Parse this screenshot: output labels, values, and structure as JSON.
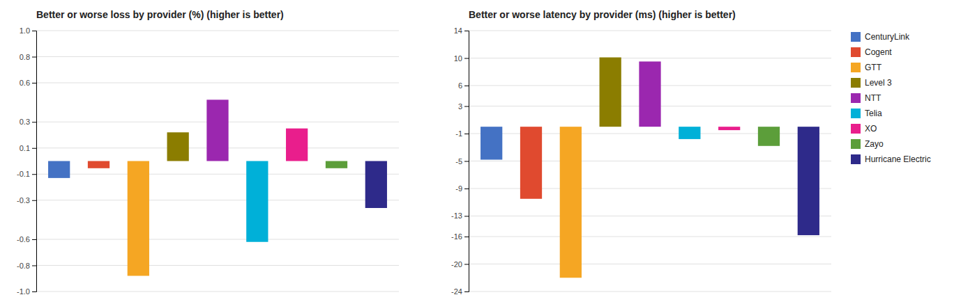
{
  "chart_data": [
    {
      "type": "bar",
      "title": "Better or worse loss by provider (%) (higher is better)",
      "categories": [
        "CenturyLink",
        "Cogent",
        "GTT",
        "Level 3",
        "NTT",
        "Telia",
        "XO",
        "Zayo",
        "Hurricane Electric"
      ],
      "values": [
        -0.13,
        -0.055,
        -0.88,
        0.22,
        0.47,
        -0.62,
        0.25,
        -0.055,
        -0.36
      ],
      "colors": [
        "#4472c4",
        "#e04a2f",
        "#f5a623",
        "#8b7d00",
        "#9b27af",
        "#00b0d8",
        "#e91e8c",
        "#5c9e3a",
        "#2e2a8a"
      ],
      "ylim": [
        -1.0,
        1.0
      ],
      "yticks": [
        {
          "value": -1.0,
          "label": "-1.0"
        },
        -0.8,
        -0.6,
        -0.3,
        -0.1,
        0.1,
        0.3,
        0.6,
        0.8,
        {
          "value": 1.0,
          "label": "1.0"
        }
      ],
      "grid": true,
      "tick_labels": "y"
    },
    {
      "type": "bar",
      "title": "Better or worse latency by provider (ms) (higher is better)",
      "categories": [
        "CenturyLink",
        "Cogent",
        "GTT",
        "Level 3",
        "NTT",
        "Telia",
        "XO",
        "Zayo",
        "Hurricane Electric"
      ],
      "values": [
        -4.8,
        -10.5,
        -22.0,
        10.1,
        9.5,
        -1.8,
        -0.5,
        -2.8,
        -15.8
      ],
      "colors": [
        "#4472c4",
        "#e04a2f",
        "#f5a623",
        "#8b7d00",
        "#9b27af",
        "#00b0d8",
        "#e91e8c",
        "#5c9e3a",
        "#2e2a8a"
      ],
      "ylim": [
        -24,
        14
      ],
      "yticks": [
        -24,
        -20,
        -16,
        -13,
        -9,
        -5,
        -1,
        3,
        6,
        10,
        14
      ],
      "grid": true,
      "tick_labels": "y",
      "legend": "right"
    }
  ]
}
